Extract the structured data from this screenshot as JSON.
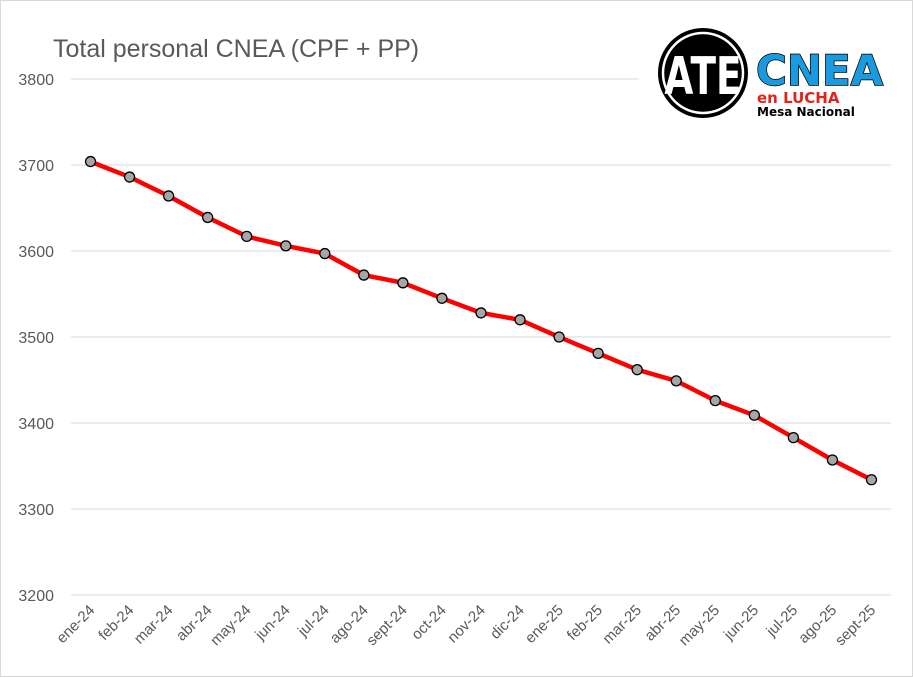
{
  "chart_data": {
    "type": "line",
    "title": "Total personal CNEA (CPF + PP)",
    "categories": [
      "ene-24",
      "feb-24",
      "mar-24",
      "abr-24",
      "may-24",
      "jun-24",
      "jul-24",
      "ago-24",
      "sept-24",
      "oct-24",
      "nov-24",
      "dic-24",
      "ene-25",
      "feb-25",
      "mar-25",
      "abr-25",
      "may-25",
      "jun-25",
      "jul-25",
      "ago-25",
      "sept-25"
    ],
    "series": [
      {
        "values": [
          3704,
          3686,
          3664,
          3639,
          3617,
          3606,
          3597,
          3572,
          3563,
          3545,
          3528,
          3520,
          3500,
          3481,
          3462,
          3449,
          3426,
          3409,
          3383,
          3357,
          3334
        ],
        "color": "#ff0000",
        "marker_color": "#a6a6a6"
      }
    ],
    "yticks": [
      3200,
      3300,
      3400,
      3500,
      3600,
      3700,
      3800
    ],
    "ylim": [
      3200,
      3800
    ],
    "grid": true,
    "legend": "none"
  },
  "logo": {
    "ate_text": "ATE",
    "cnea_text": "CNEA",
    "en_lucha_text": "en LUCHA",
    "mesa_text": "Mesa Nacional",
    "colors": {
      "ate": "#000000",
      "cnea": "#1a9be0",
      "en_lucha": "#e2231a",
      "mesa": "#000000"
    }
  }
}
